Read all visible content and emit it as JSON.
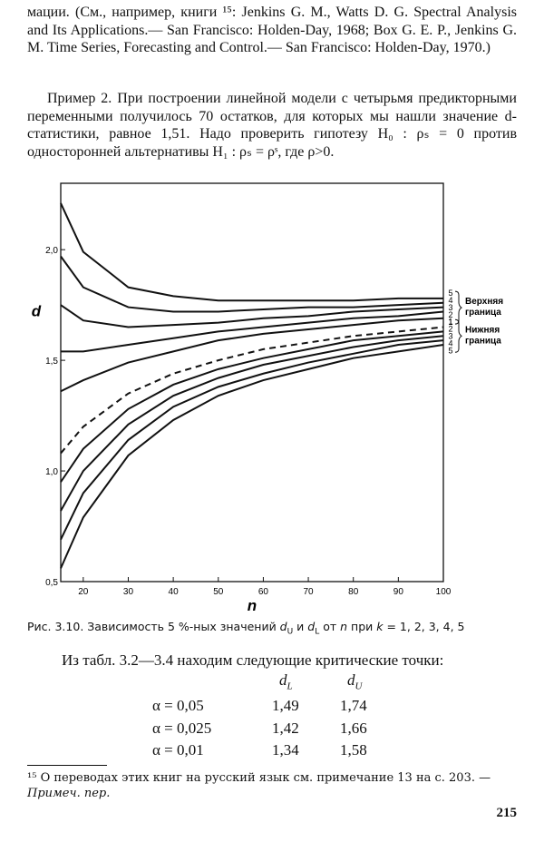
{
  "paragraphs": [
    "мации. (См., например, книги ¹⁵: Jenkins G. M., Watts D. G. Spectral Analysis and Its Applications.— San Francisco: Holden-Day, 1968; Box G. E. P., Jenkins G. M. Time Series, Forecasting and Control.— San Francisco: Holden-Day, 1970.)",
    "Пример 2. При построении линейной модели с четырьмя предикторными переменными получилось 70 остатков, для которых мы нашли значение d-статистики, равное 1,51. Надо проверить гипотезу H₀ : ρₛ = 0 против односторонней альтернативы H₁ : ρₛ = ρˢ, где ρ>0."
  ],
  "chart_data": {
    "type": "line",
    "x_label": "n",
    "y_label": "d",
    "x": [
      15,
      20,
      30,
      40,
      50,
      60,
      70,
      80,
      90,
      100
    ],
    "xlim": [
      15,
      100
    ],
    "ylim": [
      0.5,
      2.3
    ],
    "xticks": [
      20,
      30,
      40,
      50,
      60,
      70,
      80,
      90,
      100
    ],
    "yticks": [
      {
        "value": 0.5,
        "label": "0,5"
      },
      {
        "value": 1.0,
        "label": "1,0"
      },
      {
        "value": 1.5,
        "label": "1,5"
      },
      {
        "value": 2.0,
        "label": "2,0"
      }
    ],
    "color": "#111",
    "series": [
      {
        "name": "5",
        "values": [
          2.21,
          1.99,
          1.83,
          1.79,
          1.77,
          1.77,
          1.77,
          1.77,
          1.78,
          1.78
        ]
      },
      {
        "name": "4",
        "values": [
          1.97,
          1.83,
          1.74,
          1.72,
          1.72,
          1.73,
          1.74,
          1.74,
          1.75,
          1.76
        ]
      },
      {
        "name": "3",
        "values": [
          1.75,
          1.68,
          1.65,
          1.66,
          1.67,
          1.69,
          1.7,
          1.72,
          1.73,
          1.74
        ]
      },
      {
        "name": "2",
        "values": [
          1.54,
          1.54,
          1.57,
          1.6,
          1.63,
          1.65,
          1.67,
          1.69,
          1.7,
          1.72
        ]
      },
      {
        "name": "1",
        "values": [
          1.36,
          1.41,
          1.49,
          1.54,
          1.59,
          1.62,
          1.64,
          1.66,
          1.68,
          1.69
        ]
      },
      {
        "name": "1",
        "dash": true,
        "values": [
          1.08,
          1.2,
          1.35,
          1.44,
          1.5,
          1.55,
          1.58,
          1.61,
          1.63,
          1.65
        ]
      },
      {
        "name": "2",
        "values": [
          0.95,
          1.1,
          1.28,
          1.39,
          1.46,
          1.51,
          1.55,
          1.59,
          1.61,
          1.63
        ]
      },
      {
        "name": "3",
        "values": [
          0.82,
          1.0,
          1.21,
          1.34,
          1.42,
          1.48,
          1.52,
          1.56,
          1.59,
          1.61
        ]
      },
      {
        "name": "4",
        "values": [
          0.69,
          0.9,
          1.14,
          1.29,
          1.38,
          1.44,
          1.49,
          1.53,
          1.57,
          1.59
        ]
      },
      {
        "name": "5",
        "values": [
          0.56,
          0.79,
          1.07,
          1.23,
          1.34,
          1.41,
          1.46,
          1.51,
          1.54,
          1.57
        ]
      }
    ],
    "annotations": [
      [
        "Верхняя",
        "граница"
      ],
      [
        "Нижняя",
        "граница"
      ]
    ]
  },
  "caption": [
    {
      "text": "Рис. 3.10. Зависимость 5 %-ных значений "
    },
    {
      "text": "d",
      "italic": true
    },
    {
      "text": "U",
      "sub": true
    },
    {
      "text": " и "
    },
    {
      "text": "d",
      "italic": true
    },
    {
      "text": "L",
      "sub": true
    },
    {
      "text": " от "
    },
    {
      "text": "n",
      "italic": true
    },
    {
      "text": " при "
    },
    {
      "text": "k",
      "italic": true
    },
    {
      "text": " = 1, 2, 3, 4, 5"
    }
  ],
  "table": {
    "intro": "Из табл. 3.2—3.4 находим следующие критические точки:",
    "header": [
      [
        "d",
        "L"
      ],
      [
        "d",
        "U"
      ]
    ],
    "rows": [
      [
        "α = 0,05",
        "1,49",
        "1,74"
      ],
      [
        "α = 0,025",
        "1,42",
        "1,66"
      ],
      [
        "α = 0,01",
        "1,34",
        "1,58"
      ]
    ]
  },
  "footnote": {
    "mark": "¹⁵",
    "text": " О переводах этих книг на русский язык см. примечание 13 на с. 203. — ",
    "note": "Примеч. пер."
  },
  "page_number": "215"
}
